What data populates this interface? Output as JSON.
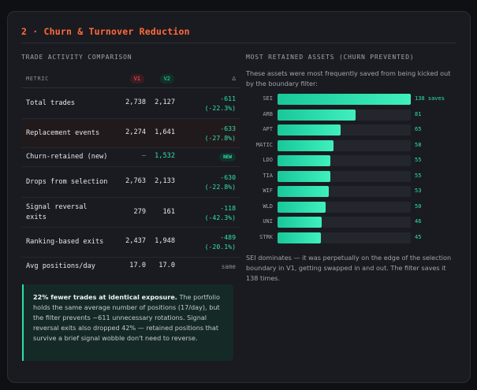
{
  "section_title": "2 · Churn & Turnover Reduction",
  "left": {
    "heading": "TRADE ACTIVITY COMPARISON",
    "table": {
      "headers": {
        "metric": "METRIC",
        "v1": "V1",
        "v2": "V2",
        "delta": "Δ"
      },
      "rows": [
        {
          "metric": "Total trades",
          "v1": "2,738",
          "v2": "2,127",
          "delta_abs": "-611",
          "delta_pct": "(-22.3%)"
        },
        {
          "metric": "Replacement events",
          "v1": "2,274",
          "v2": "1,641",
          "delta_abs": "-633",
          "delta_pct": "(-27.8%)"
        },
        {
          "metric": "Churn-retained (new)",
          "v1": "—",
          "v2": "1,532",
          "delta_abs": "NEW",
          "delta_pct": ""
        },
        {
          "metric": "Drops from selection",
          "v1": "2,763",
          "v2": "2,133",
          "delta_abs": "-630",
          "delta_pct": "(-22.8%)"
        },
        {
          "metric": "Signal reversal",
          "metric_line2": "exits",
          "v1": "279",
          "v2": "161",
          "delta_abs": "-118",
          "delta_pct": "(-42.3%)"
        },
        {
          "metric": "Ranking-based exits",
          "v1": "2,437",
          "v2": "1,948",
          "delta_abs": "-489",
          "delta_pct": "(-20.1%)"
        },
        {
          "metric": "Avg positions/day",
          "v1": "17.0",
          "v2": "17.0",
          "delta_abs": "same",
          "delta_pct": ""
        }
      ]
    },
    "callout": {
      "bold": "22% fewer trades at identical exposure.",
      "text": " The portfolio holds the same average number of positions (17/day), but the filter prevents ~611 unnecessary rotations. Signal reversal exits also dropped 42% — retained positions that survive a brief signal wobble don't need to reverse."
    }
  },
  "right": {
    "heading": "MOST RETAINED ASSETS (CHURN PREVENTED)",
    "intro": "These assets were most frequently saved from being kicked out by the boundary filter:",
    "outro": "SEI dominates — it was perpetually on the edge of the selection boundary in V1, getting swapped in and out. The filter saves it 138 times."
  },
  "chart_data": {
    "type": "bar",
    "orientation": "horizontal",
    "title": "MOST RETAINED ASSETS (CHURN PREVENTED)",
    "categories": [
      "SEI",
      "ARB",
      "APT",
      "MATIC",
      "LDO",
      "TIA",
      "WIF",
      "WLD",
      "UNI",
      "STRK"
    ],
    "values": [
      138,
      81,
      65,
      58,
      55,
      55,
      53,
      50,
      46,
      45
    ],
    "value_labels": [
      "138 saves",
      "81",
      "65",
      "58",
      "55",
      "55",
      "53",
      "50",
      "46",
      "45"
    ],
    "xlim": [
      0,
      138
    ],
    "color": "#2ee0ac"
  },
  "colors": {
    "accent": "#ff6a3c",
    "positive": "#2ee0ac",
    "v1_badge": "#ff5d5d",
    "card": "#1a1b20",
    "background": "#0f1013"
  }
}
